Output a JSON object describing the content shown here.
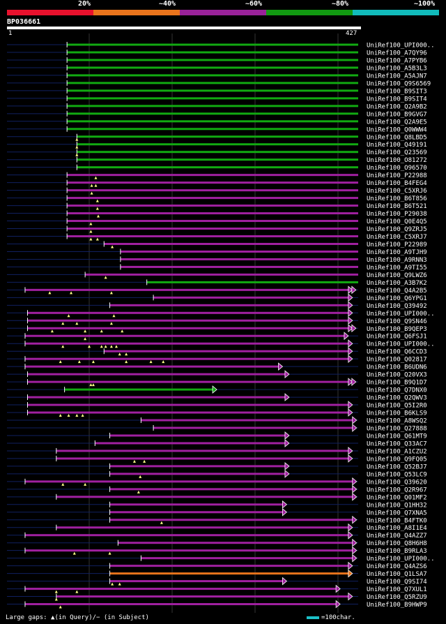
{
  "legend": {
    "colors": [
      "#e8112d",
      "#e9741c",
      "#992299",
      "#119911",
      "#11bbbb"
    ],
    "labels": [
      "20%",
      "~40%",
      "~60%",
      "~80%",
      "~100%"
    ]
  },
  "query": {
    "id": "BP036661",
    "start": "1",
    "end": "427",
    "length": 427
  },
  "footer": {
    "gaps_text": "Large gaps: ▲(in Query)/− (in Subject)",
    "scale_text": "=100char."
  },
  "hits": [
    {
      "name": "UniRef100_UPI000..",
      "s": 73,
      "e": 427,
      "c": "green",
      "ar": 0,
      "tri": []
    },
    {
      "name": "UniRef100_A7QY96",
      "s": 73,
      "e": 427,
      "c": "green",
      "ar": 0,
      "tri": []
    },
    {
      "name": "UniRef100_A7PYB6",
      "s": 73,
      "e": 427,
      "c": "green",
      "ar": 0,
      "tri": []
    },
    {
      "name": "UniRef100_A5B3L3",
      "s": 73,
      "e": 427,
      "c": "green",
      "ar": 0,
      "tri": []
    },
    {
      "name": "UniRef100_A5AJN7",
      "s": 73,
      "e": 427,
      "c": "green",
      "ar": 0,
      "tri": []
    },
    {
      "name": "UniRef100_Q9S6569",
      "s": 73,
      "e": 427,
      "c": "green",
      "ar": 0,
      "tri": []
    },
    {
      "name": "UniRef100_B9SIT3",
      "s": 73,
      "e": 427,
      "c": "green",
      "ar": 0,
      "tri": []
    },
    {
      "name": "UniRef100_B9SIT4",
      "s": 73,
      "e": 427,
      "c": "green",
      "ar": 0,
      "tri": []
    },
    {
      "name": "UniRef100_Q2A9B2",
      "s": 73,
      "e": 427,
      "c": "green",
      "ar": 0,
      "tri": []
    },
    {
      "name": "UniRef100_B9GVG7",
      "s": 73,
      "e": 427,
      "c": "green",
      "ar": 0,
      "tri": []
    },
    {
      "name": "UniRef100_Q2A9E5",
      "s": 73,
      "e": 427,
      "c": "green",
      "ar": 0,
      "tri": []
    },
    {
      "name": "UniRef100_Q0WWW4",
      "s": 73,
      "e": 427,
      "c": "green",
      "ar": 0,
      "tri": []
    },
    {
      "name": "UniRef100_Q8LBD5",
      "s": 85,
      "e": 427,
      "c": "green",
      "ar": 0,
      "tri": [
        85
      ]
    },
    {
      "name": "UniRef100_Q49191",
      "s": 85,
      "e": 427,
      "c": "green",
      "ar": 0,
      "tri": [
        85
      ]
    },
    {
      "name": "UniRef100_Q23569",
      "s": 85,
      "e": 427,
      "c": "green",
      "ar": 0,
      "tri": [
        85
      ]
    },
    {
      "name": "UniRef100_O81272",
      "s": 85,
      "e": 427,
      "c": "green",
      "ar": 0,
      "tri": []
    },
    {
      "name": "UniRef100_O96570",
      "s": 85,
      "e": 427,
      "c": "green",
      "ar": 0,
      "tri": []
    },
    {
      "name": "UniRef100_P22988",
      "s": 73,
      "e": 427,
      "c": "purple",
      "ar": 0,
      "tri": [
        108
      ]
    },
    {
      "name": "UniRef100_B4FEG4",
      "s": 73,
      "e": 427,
      "c": "purple",
      "ar": 0,
      "tri": [
        103,
        108
      ]
    },
    {
      "name": "UniRef100_C5XRJ6",
      "s": 73,
      "e": 427,
      "c": "purple",
      "ar": 0,
      "tri": [
        103
      ]
    },
    {
      "name": "UniRef100_B6T856",
      "s": 73,
      "e": 427,
      "c": "purple",
      "ar": 0,
      "tri": [
        110
      ]
    },
    {
      "name": "UniRef100_B6T521",
      "s": 73,
      "e": 427,
      "c": "purple",
      "ar": 0,
      "tri": [
        110
      ]
    },
    {
      "name": "UniRef100_P29038",
      "s": 73,
      "e": 427,
      "c": "purple",
      "ar": 0,
      "tri": [
        111
      ]
    },
    {
      "name": "UniRef100_Q0E4Q5",
      "s": 73,
      "e": 427,
      "c": "purple",
      "ar": 0,
      "tri": [
        102
      ]
    },
    {
      "name": "UniRef100_Q9ZRJ5",
      "s": 73,
      "e": 427,
      "c": "purple",
      "ar": 0,
      "tri": [
        102
      ]
    },
    {
      "name": "UniRef100_C5XRJ7",
      "s": 73,
      "e": 427,
      "c": "purple",
      "ar": 0,
      "tri": [
        102,
        110
      ]
    },
    {
      "name": "UniRef100_P22989",
      "s": 118,
      "e": 427,
      "c": "purple",
      "ar": 0,
      "tri": [
        128
      ]
    },
    {
      "name": "UniRef100_A9TJH9",
      "s": 138,
      "e": 427,
      "c": "purple",
      "ar": 0,
      "tri": []
    },
    {
      "name": "UniRef100_A9RNN3",
      "s": 138,
      "e": 427,
      "c": "purple",
      "ar": 0,
      "tri": []
    },
    {
      "name": "UniRef100_A9TI55",
      "s": 138,
      "e": 427,
      "c": "purple",
      "ar": 0,
      "tri": []
    },
    {
      "name": "UniRef100_Q9LWZ6",
      "s": 95,
      "e": 427,
      "c": "purple",
      "ar": 0,
      "tri": [
        120
      ]
    },
    {
      "name": "UniRef100_A3B7K2",
      "s": 170,
      "e": 427,
      "c": "green",
      "ar": 0,
      "tri": []
    },
    {
      "name": "UniRef100_Q4A2B5",
      "s": 22,
      "e": 415,
      "c": "purple",
      "ar": 2,
      "tri": [
        52,
        78,
        127
      ]
    },
    {
      "name": "UniRef100_Q6YPG1",
      "s": 178,
      "e": 415,
      "c": "purple",
      "ar": 1,
      "tri": []
    },
    {
      "name": "UniRef100_Q39492",
      "s": 125,
      "e": 415,
      "c": "purple",
      "ar": 1,
      "tri": []
    },
    {
      "name": "UniRef100_UPI000..",
      "s": 25,
      "e": 415,
      "c": "purple",
      "ar": 1,
      "tri": [
        75,
        130
      ]
    },
    {
      "name": "UniRef100_Q9SN46",
      "s": 25,
      "e": 415,
      "c": "purple",
      "ar": 1,
      "tri": [
        68,
        85,
        127
      ]
    },
    {
      "name": "UniRef100_B9QEP3",
      "s": 25,
      "e": 415,
      "c": "purple",
      "ar": 2,
      "tri": [
        55,
        95,
        115,
        140
      ]
    },
    {
      "name": "UniRef100_Q6FSJ1",
      "s": 22,
      "e": 410,
      "c": "purple",
      "ar": 1,
      "tri": [
        95
      ]
    },
    {
      "name": "UniRef100_UPI000..",
      "s": 22,
      "e": 415,
      "c": "purple",
      "ar": 1,
      "tri": [
        68,
        100,
        115,
        120,
        127,
        133
      ]
    },
    {
      "name": "UniRef100_Q6CCD3",
      "s": 118,
      "e": 415,
      "c": "purple",
      "ar": 1,
      "tri": [
        137,
        145
      ]
    },
    {
      "name": "UniRef100_Q02817",
      "s": 22,
      "e": 415,
      "c": "purple",
      "ar": 1,
      "tri": [
        65,
        88,
        105,
        145,
        175,
        190
      ]
    },
    {
      "name": "UniRef100_B6UDN6",
      "s": 22,
      "e": 330,
      "c": "purple",
      "ar": 1,
      "tri": []
    },
    {
      "name": "UniRef100_Q20VX3",
      "s": 25,
      "e": 338,
      "c": "purple",
      "ar": 1,
      "tri": []
    },
    {
      "name": "UniRef100_B9Q1D7",
      "s": 25,
      "e": 415,
      "c": "purple",
      "ar": 2,
      "tri": [
        102,
        105
      ]
    },
    {
      "name": "UniRef100_Q7DNX0",
      "s": 70,
      "e": 250,
      "c": "green",
      "ar": 1,
      "tri": []
    },
    {
      "name": "UniRef100_Q2QWV3",
      "s": 25,
      "e": 338,
      "c": "purple",
      "ar": 1,
      "tri": []
    },
    {
      "name": "UniRef100_Q5I2R0",
      "s": 25,
      "e": 415,
      "c": "purple",
      "ar": 1,
      "tri": []
    },
    {
      "name": "UniRef100_B6KLS9",
      "s": 25,
      "e": 415,
      "c": "purple",
      "ar": 1,
      "tri": [
        65,
        75,
        85,
        92
      ]
    },
    {
      "name": "UniRef100_A8WSQ2",
      "s": 163,
      "e": 420,
      "c": "purple",
      "ar": 1,
      "tri": []
    },
    {
      "name": "UniRef100_Q27888",
      "s": 178,
      "e": 420,
      "c": "purple",
      "ar": 1,
      "tri": []
    },
    {
      "name": "UniRef100_Q61MT9",
      "s": 125,
      "e": 338,
      "c": "purple",
      "ar": 1,
      "tri": []
    },
    {
      "name": "UniRef100_Q33AC7",
      "s": 107,
      "e": 338,
      "c": "purple",
      "ar": 1,
      "tri": []
    },
    {
      "name": "UniRef100_A1CZU2",
      "s": 60,
      "e": 415,
      "c": "purple",
      "ar": 1,
      "tri": []
    },
    {
      "name": "UniRef100_Q9FQ05",
      "s": 60,
      "e": 415,
      "c": "purple",
      "ar": 1,
      "tri": [
        155,
        167
      ]
    },
    {
      "name": "UniRef100_Q52BJ7",
      "s": 125,
      "e": 338,
      "c": "purple",
      "ar": 1,
      "tri": []
    },
    {
      "name": "UniRef100_Q53LC9",
      "s": 125,
      "e": 338,
      "c": "purple",
      "ar": 1,
      "tri": [
        162
      ]
    },
    {
      "name": "UniRef100_Q39620",
      "s": 22,
      "e": 420,
      "c": "purple",
      "ar": 1,
      "tri": [
        68,
        95
      ]
    },
    {
      "name": "UniRef100_Q2R967",
      "s": 125,
      "e": 420,
      "c": "purple",
      "ar": 1,
      "tri": [
        160
      ]
    },
    {
      "name": "UniRef100_Q01MF2",
      "s": 60,
      "e": 420,
      "c": "purple",
      "ar": 1,
      "tri": []
    },
    {
      "name": "UniRef100_Q1HH32",
      "s": 125,
      "e": 335,
      "c": "purple",
      "ar": 1,
      "tri": []
    },
    {
      "name": "UniRef100_Q7XNA5",
      "s": 125,
      "e": 335,
      "c": "purple",
      "ar": 1,
      "tri": []
    },
    {
      "name": "UniRef100_B4FTK0",
      "s": 125,
      "e": 420,
      "c": "purple",
      "ar": 1,
      "tri": [
        188
      ]
    },
    {
      "name": "UniRef100_A8I1E4",
      "s": 60,
      "e": 415,
      "c": "purple",
      "ar": 1,
      "tri": []
    },
    {
      "name": "UniRef100_Q4AZZ7",
      "s": 22,
      "e": 415,
      "c": "purple",
      "ar": 1,
      "tri": []
    },
    {
      "name": "UniRef100_Q8H6H8",
      "s": 135,
      "e": 420,
      "c": "purple",
      "ar": 1,
      "tri": []
    },
    {
      "name": "UniRef100_B9RLA3",
      "s": 22,
      "e": 420,
      "c": "purple",
      "ar": 1,
      "tri": [
        82,
        125
      ]
    },
    {
      "name": "UniRef100_UPI000..",
      "s": 163,
      "e": 420,
      "c": "purple",
      "ar": 1,
      "tri": []
    },
    {
      "name": "UniRef100_Q4AZS6",
      "s": 125,
      "e": 415,
      "c": "purple",
      "ar": 1,
      "tri": []
    },
    {
      "name": "UniRef100_Q1LSA7",
      "s": 125,
      "e": 415,
      "c": "orange",
      "ar": 1,
      "tri": []
    },
    {
      "name": "UniRef100_Q9SI74",
      "s": 125,
      "e": 335,
      "c": "purple",
      "ar": 1,
      "tri": [
        128,
        137
      ]
    },
    {
      "name": "UniRef100_Q7XUL1",
      "s": 22,
      "e": 400,
      "c": "purple",
      "ar": 1,
      "tri": [
        60,
        85
      ]
    },
    {
      "name": "UniRef100_Q5RZU9",
      "s": 60,
      "e": 415,
      "c": "purple",
      "ar": 1,
      "tri": [
        60
      ]
    },
    {
      "name": "UniRef100_B9HWP9",
      "s": 22,
      "e": 400,
      "c": "purple",
      "ar": 1,
      "tri": [
        65
      ]
    }
  ]
}
